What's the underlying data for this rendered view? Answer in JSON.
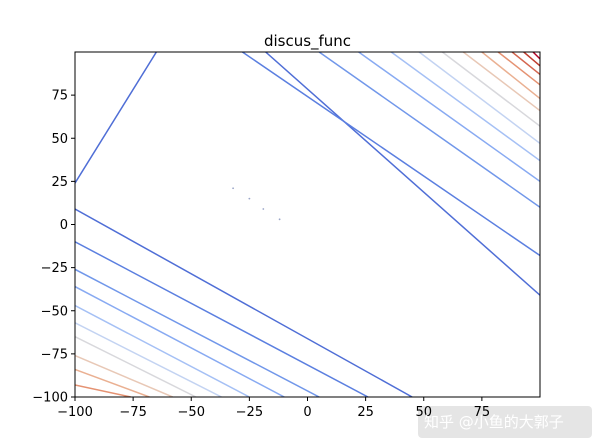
{
  "chart_data": {
    "type": "contour",
    "title": "discus_func",
    "xlabel": "",
    "ylabel": "",
    "xlim": [
      -100,
      100
    ],
    "ylim": [
      -100,
      100
    ],
    "x_ticks": [
      -100,
      -75,
      -50,
      -25,
      0,
      25,
      50,
      75
    ],
    "y_ticks": [
      -100,
      -75,
      -50,
      -25,
      0,
      25,
      50,
      75
    ],
    "grid": false,
    "colormap": "coolwarm",
    "contour_lines": [
      {
        "color": "#4f6ed6",
        "segment": [
          [
            -100,
            24
          ],
          [
            -65,
            100
          ]
        ]
      },
      {
        "color": "#4f6ed6",
        "segment": [
          [
            -18,
            100
          ],
          [
            100,
            -41
          ]
        ]
      },
      {
        "color": "#4f6ed6",
        "segment": [
          [
            -100,
            9
          ],
          [
            45,
            -100
          ]
        ]
      },
      {
        "color": "#5b7fe0",
        "segment": [
          [
            -28,
            100
          ],
          [
            100,
            -18
          ]
        ]
      },
      {
        "color": "#5b7fe0",
        "segment": [
          [
            -100,
            -10
          ],
          [
            26,
            -100
          ]
        ]
      },
      {
        "color": "#7197ea",
        "segment": [
          [
            5,
            100
          ],
          [
            100,
            10
          ]
        ]
      },
      {
        "color": "#7197ea",
        "segment": [
          [
            -100,
            -26
          ],
          [
            5,
            -100
          ]
        ]
      },
      {
        "color": "#88aaf2",
        "segment": [
          [
            22,
            100
          ],
          [
            100,
            25
          ]
        ]
      },
      {
        "color": "#88aaf2",
        "segment": [
          [
            -100,
            -36
          ],
          [
            -10,
            -100
          ]
        ]
      },
      {
        "color": "#a5c0f5",
        "segment": [
          [
            36,
            100
          ],
          [
            100,
            37
          ]
        ]
      },
      {
        "color": "#a5c0f5",
        "segment": [
          [
            -100,
            -47
          ],
          [
            -25,
            -100
          ]
        ]
      },
      {
        "color": "#c3d3f2",
        "segment": [
          [
            48,
            100
          ],
          [
            100,
            47
          ]
        ]
      },
      {
        "color": "#c3d3f2",
        "segment": [
          [
            -100,
            -57
          ],
          [
            -37,
            -100
          ]
        ]
      },
      {
        "color": "#d8d8dc",
        "segment": [
          [
            58,
            100
          ],
          [
            100,
            57
          ]
        ]
      },
      {
        "color": "#d8d8dc",
        "segment": [
          [
            -100,
            -65
          ],
          [
            -48,
            -100
          ]
        ]
      },
      {
        "color": "#e8c8b6",
        "segment": [
          [
            67,
            100
          ],
          [
            100,
            66
          ]
        ]
      },
      {
        "color": "#e8c8b6",
        "segment": [
          [
            -100,
            -76
          ],
          [
            -58,
            -100
          ]
        ]
      },
      {
        "color": "#eab092",
        "segment": [
          [
            75,
            100
          ],
          [
            100,
            73
          ]
        ]
      },
      {
        "color": "#eab092",
        "segment": [
          [
            -100,
            -84
          ],
          [
            -68,
            -100
          ]
        ]
      },
      {
        "color": "#e59272",
        "segment": [
          [
            82,
            100
          ],
          [
            100,
            81
          ]
        ]
      },
      {
        "color": "#e59272",
        "segment": [
          [
            -100,
            -93
          ],
          [
            -76,
            -100
          ]
        ]
      },
      {
        "color": "#d4664f",
        "segment": [
          [
            88,
            100
          ],
          [
            100,
            87
          ]
        ]
      },
      {
        "color": "#c03c2e",
        "segment": [
          [
            93,
            100
          ],
          [
            100,
            92
          ]
        ]
      },
      {
        "color": "#b40426",
        "segment": [
          [
            97,
            100
          ],
          [
            100,
            96
          ]
        ]
      }
    ],
    "points": [
      [
        -32,
        21
      ],
      [
        -25,
        15
      ],
      [
        -19,
        9
      ],
      [
        -12,
        3
      ]
    ]
  },
  "watermark": "知乎 @小鱼的大郭子"
}
